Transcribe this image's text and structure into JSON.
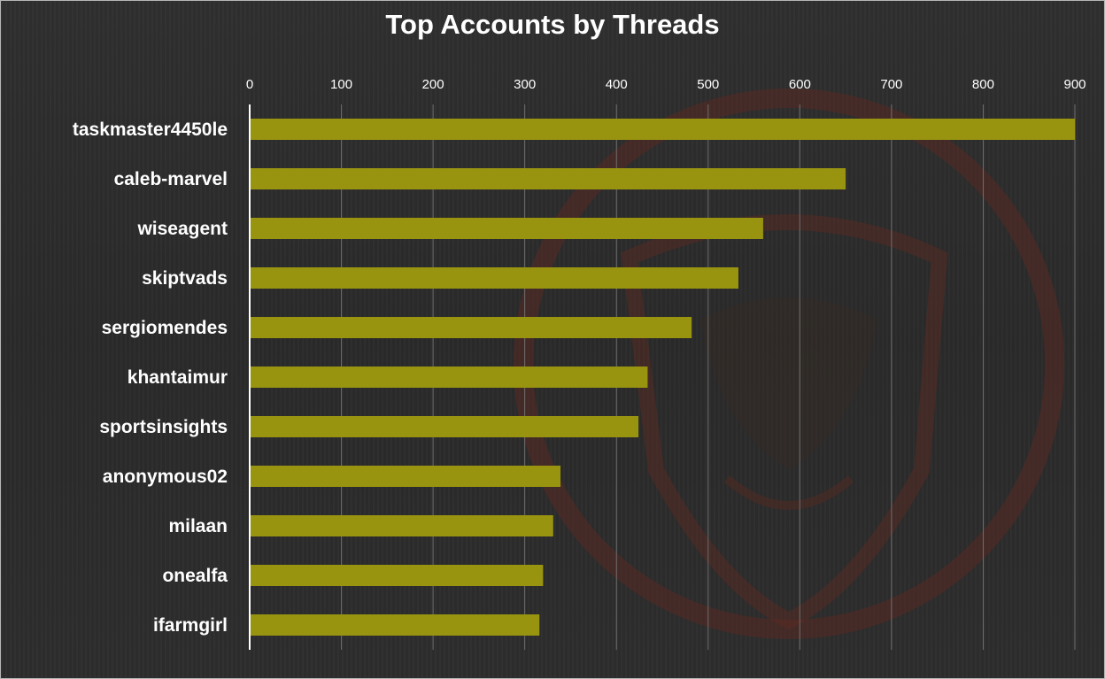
{
  "chart_data": {
    "type": "bar",
    "orientation": "horizontal",
    "title": "Top Accounts by Threads",
    "xlabel": "",
    "ylabel": "",
    "xlim": [
      0,
      900
    ],
    "ticks": [
      0,
      100,
      200,
      300,
      400,
      500,
      600,
      700,
      800,
      900
    ],
    "grid": true,
    "legend": "none",
    "categories": [
      "taskmaster4450le",
      "caleb-marvel",
      "wiseagent",
      "skiptvads",
      "sergiomendes",
      "khantaimur",
      "sportsinsights",
      "anonymous02",
      "milaan",
      "onealfa",
      "ifarmgirl"
    ],
    "values": [
      900,
      650,
      560,
      533,
      482,
      434,
      424,
      339,
      331,
      320,
      316
    ]
  },
  "colors": {
    "bar": "#999410",
    "background": "#2b2b2b",
    "text": "#ffffff",
    "gridline": "#6f6f6f",
    "axis": "#ffffff",
    "watermark": "#5a2a22"
  }
}
